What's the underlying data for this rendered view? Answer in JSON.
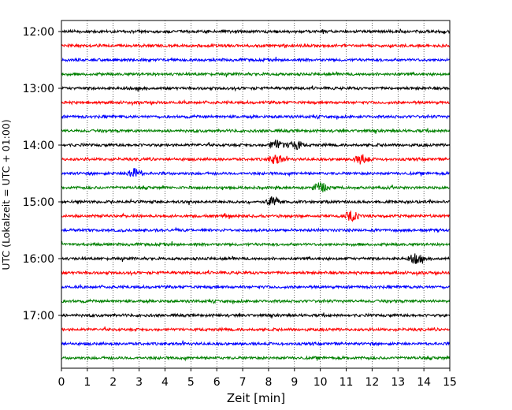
{
  "chart_data": {
    "type": "line",
    "xlabel": "Zeit  [min]",
    "ylabel": "UTC (Lokalzeit = UTC + 01:00)",
    "xlim": [
      0,
      15
    ],
    "x_ticks": [
      "0",
      "1",
      "2",
      "3",
      "4",
      "5",
      "6",
      "7",
      "8",
      "9",
      "10",
      "11",
      "12",
      "13",
      "14",
      "15"
    ],
    "y_ticks": [
      "12:00",
      "13:00",
      "14:00",
      "15:00",
      "16:00",
      "17:00"
    ],
    "grid": "vertical dotted lines at each minute",
    "trace_interval_minutes": 15,
    "trace_start": "12:00",
    "trace_end": "17:45",
    "trace_color_cycle": [
      "#000000",
      "#ff0000",
      "#0000ff",
      "#008000"
    ],
    "notable_bursts": [
      {
        "trace": "14:00",
        "minute": 9.0
      },
      {
        "trace": "14:00",
        "minute": 8.3
      },
      {
        "trace": "14:15",
        "minute": 8.3
      },
      {
        "trace": "14:15",
        "minute": 11.6
      },
      {
        "trace": "14:30",
        "minute": 2.8
      },
      {
        "trace": "14:45",
        "minute": 10.0
      },
      {
        "trace": "15:00",
        "minute": 8.2
      },
      {
        "trace": "15:15",
        "minute": 11.2
      },
      {
        "trace": "16:00",
        "minute": 13.7
      }
    ]
  }
}
